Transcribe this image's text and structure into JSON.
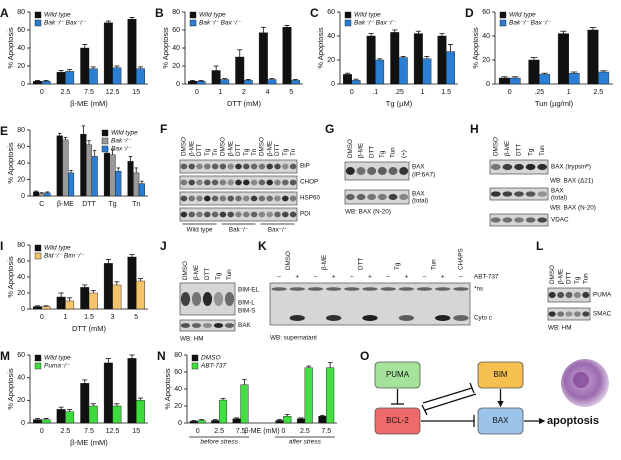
{
  "chart_data": [
    {
      "type": "bar",
      "panel": "A",
      "y_label": "% Apoptosis",
      "x_label": "β-ME (mM)",
      "categories": [
        "0",
        "2.5",
        "7.5",
        "12.5",
        "15"
      ],
      "ylim": [
        0,
        80
      ],
      "yticks": [
        0,
        20,
        40,
        60,
        80
      ],
      "legend": "upper-left",
      "series": [
        {
          "name": "Wild type",
          "color": "#111111",
          "values": [
            3,
            13,
            40,
            68,
            72
          ],
          "errors": [
            1,
            2,
            4,
            2,
            2
          ]
        },
        {
          "name": "Bak⁻/⁻ Bax⁻/⁻",
          "color": "#2a7fd4",
          "values": [
            3,
            14,
            17,
            18,
            17
          ],
          "errors": [
            1,
            2,
            2,
            2,
            2
          ]
        }
      ]
    },
    {
      "type": "bar",
      "panel": "B",
      "y_label": "% Apoptosis",
      "x_label": "DTT (mM)",
      "categories": [
        "0",
        "1",
        "2",
        "4",
        "5"
      ],
      "ylim": [
        0,
        80
      ],
      "yticks": [
        0,
        20,
        40,
        60,
        80
      ],
      "legend": "upper-left",
      "series": [
        {
          "name": "Wild type",
          "color": "#111111",
          "values": [
            3,
            15,
            30,
            57,
            63
          ],
          "errors": [
            1,
            5,
            8,
            6,
            2
          ]
        },
        {
          "name": "Bak⁻/⁻ Bax⁻/⁻",
          "color": "#2a7fd4",
          "values": [
            3,
            5,
            4,
            5,
            4
          ],
          "errors": [
            1,
            1,
            1,
            1,
            1
          ]
        }
      ]
    },
    {
      "type": "bar",
      "panel": "C",
      "y_label": "% Apoptosis",
      "x_label": "Tg (µM)",
      "categories": [
        "0",
        ".1",
        ".25",
        "1",
        "1.5"
      ],
      "ylim": [
        0,
        60
      ],
      "yticks": [
        0,
        20,
        40,
        60
      ],
      "legend": "upper-left",
      "series": [
        {
          "name": "Wild type",
          "color": "#111111",
          "values": [
            8,
            40,
            43,
            42,
            40
          ],
          "errors": [
            1,
            2,
            2,
            2,
            2
          ]
        },
        {
          "name": "Bak⁻/⁻ Bax⁻/⁻",
          "color": "#2a7fd4",
          "values": [
            3,
            20,
            22,
            21,
            27
          ],
          "errors": [
            1,
            1,
            1,
            2,
            6
          ]
        }
      ]
    },
    {
      "type": "bar",
      "panel": "D",
      "y_label": "% Apoptosis",
      "x_label": "Tun (µg/ml)",
      "categories": [
        "0",
        ".25",
        "1",
        "2.5"
      ],
      "ylim": [
        0,
        60
      ],
      "yticks": [
        0,
        20,
        40,
        60
      ],
      "legend": "upper-left",
      "series": [
        {
          "name": "Wild type",
          "color": "#111111",
          "values": [
            5,
            20,
            42,
            45
          ],
          "errors": [
            1,
            2,
            2,
            2
          ]
        },
        {
          "name": "Bak⁻/⁻ Bax⁻/⁻",
          "color": "#2a7fd4",
          "values": [
            5,
            8,
            9,
            10
          ],
          "errors": [
            1,
            1,
            1,
            1
          ]
        }
      ]
    },
    {
      "type": "bar",
      "panel": "E",
      "y_label": "% Apoptosis",
      "categories": [
        "C",
        "β-ME",
        "DTT",
        "Tg",
        "Tn"
      ],
      "ylim": [
        0,
        80
      ],
      "yticks": [
        0,
        20,
        40,
        60,
        80
      ],
      "legend": "upper-right",
      "series": [
        {
          "name": "Wild type",
          "color": "#111111",
          "values": [
            5,
            73,
            75,
            52,
            42
          ],
          "errors": [
            1,
            3,
            10,
            5,
            6
          ]
        },
        {
          "name": "Bak⁻/⁻",
          "color": "#999999",
          "values": [
            3,
            68,
            62,
            50,
            28
          ],
          "errors": [
            1,
            3,
            5,
            6,
            6
          ]
        },
        {
          "name": "Bax⁻/⁻",
          "color": "#2a7fd4",
          "values": [
            4,
            28,
            48,
            30,
            15
          ],
          "errors": [
            1,
            3,
            7,
            4,
            3
          ]
        }
      ]
    },
    {
      "type": "bar",
      "panel": "I",
      "y_label": "% Apoptosis",
      "x_label": "DTT (mM)",
      "categories": [
        "0",
        "1",
        "1.5",
        "3",
        "5"
      ],
      "ylim": [
        0,
        80
      ],
      "yticks": [
        0,
        20,
        40,
        60,
        80
      ],
      "legend": "upper-left",
      "series": [
        {
          "name": "Wild type",
          "color": "#111111",
          "values": [
            3,
            15,
            27,
            57,
            65
          ],
          "errors": [
            1,
            5,
            3,
            5,
            3
          ]
        },
        {
          "name": "Bid⁻/⁻ Bim⁻/⁻",
          "color": "#f4c36a",
          "values": [
            3,
            10,
            20,
            30,
            35
          ],
          "errors": [
            1,
            4,
            3,
            4,
            3
          ]
        }
      ]
    },
    {
      "type": "bar",
      "panel": "M",
      "y_label": "% Apoptosis",
      "x_label": "β-ME (mM)",
      "categories": [
        "0",
        "2.5",
        "7.5",
        "12.5",
        "15"
      ],
      "ylim": [
        0,
        60
      ],
      "yticks": [
        0,
        20,
        40,
        60
      ],
      "legend": "upper-left",
      "series": [
        {
          "name": "Wild type",
          "color": "#111111",
          "values": [
            3,
            12,
            35,
            53,
            57
          ],
          "errors": [
            1,
            2,
            3,
            4,
            3
          ]
        },
        {
          "name": "Puma⁻/⁻",
          "color": "#3ddc3d",
          "values": [
            3,
            10,
            15,
            15,
            20
          ],
          "errors": [
            1,
            2,
            2,
            2,
            2
          ]
        }
      ]
    },
    {
      "type": "bar",
      "panel": "N",
      "y_label": "% Apoptosis",
      "x_label": "β-ME (mM)",
      "group_labels": [
        "before stress",
        "after stress"
      ],
      "categories": [
        "0",
        "2.5",
        "7.5",
        "0",
        "2.5",
        "7.5"
      ],
      "ylim": [
        0,
        80
      ],
      "yticks": [
        0,
        20,
        40,
        60,
        80
      ],
      "legend": "upper-left",
      "series": [
        {
          "name": "DMSO",
          "color": "#111111",
          "values": [
            2,
            3,
            5,
            3,
            5,
            8
          ],
          "errors": [
            1,
            1,
            1,
            1,
            1,
            1
          ]
        },
        {
          "name": "ABT-737",
          "color": "#44dd44",
          "values": [
            3,
            27,
            45,
            8,
            65,
            65
          ],
          "errors": [
            1,
            2,
            6,
            2,
            2,
            6
          ]
        }
      ]
    }
  ],
  "blots": {
    "F": {
      "panel": "F",
      "lanes": [
        "DMSO",
        "β-ME",
        "DTT",
        "Tg",
        "Tn",
        "DMSO",
        "β-ME",
        "DTT",
        "Tg",
        "Tn",
        "DMSO",
        "β-ME",
        "DTT",
        "Tg",
        "Tn"
      ],
      "groups": [
        "Wild type",
        "Bak⁻/⁻",
        "Bax⁻/⁻"
      ],
      "rows": [
        {
          "labels": [
            "BiP"
          ]
        },
        {
          "labels": [
            "CHOP"
          ]
        },
        {
          "labels": [
            "HSP60"
          ]
        },
        {
          "labels": [
            "PDI"
          ]
        }
      ]
    },
    "G": {
      "panel": "G",
      "lanes": [
        "DMSO",
        "β-ME",
        "DTT",
        "Tg",
        "Tun",
        "(+)"
      ],
      "rows": [
        {
          "labels": [
            "BAX",
            "(IP:6A7)"
          ]
        },
        {
          "labels": [
            "BAX",
            "(total)"
          ],
          "footer": "WB: BAX (N-20)"
        }
      ]
    },
    "H": {
      "panel": "H",
      "lanes": [
        "DMSO",
        "β-ME",
        "DTT",
        "Tg",
        "Tun"
      ],
      "rows": [
        {
          "labels": [
            "BAX (trypsinᴿ)"
          ],
          "footer": "WB: BAX (Δ21)"
        },
        {
          "labels": [
            "BAX",
            "(total)"
          ],
          "footer": "WB: BAX (N-20)"
        },
        {
          "labels": [
            "VDAC"
          ]
        }
      ]
    },
    "J": {
      "panel": "J",
      "lanes": [
        "DMSO",
        "β-ME",
        "DTT",
        "Tg",
        "Tun"
      ],
      "rows": [
        {
          "labels": [
            "BIM-EL",
            "BIM-L",
            "BIM-S"
          ]
        },
        {
          "labels": [
            "BAK"
          ],
          "footer": "WB: HM"
        }
      ]
    },
    "K": {
      "panel": "K",
      "lanes": [
        "DMSO",
        "β-ME",
        "DTT",
        "Tg",
        "Tun",
        "CHAPS"
      ],
      "signs": [
        "–",
        "+",
        "–",
        "+",
        "–",
        "+",
        "–",
        "+",
        "–",
        "+",
        "–"
      ],
      "treatment": "ABT-737",
      "rows": [
        {
          "labels": [
            "*ns",
            "Cyto c"
          ],
          "footer": "WB: supernatant"
        }
      ]
    },
    "L": {
      "panel": "L",
      "lanes": [
        "DMSO",
        "β-ME",
        "DTT",
        "Tg",
        "Tun"
      ],
      "rows": [
        {
          "labels": [
            "PUMA"
          ]
        },
        {
          "labels": [
            "SMAC"
          ],
          "footer": "WB: HM"
        }
      ]
    }
  },
  "diagram": {
    "panel": "O",
    "nodes": [
      {
        "label": "PUMA",
        "color": "#a6e39a"
      },
      {
        "label": "BIM",
        "color": "#f5c04f"
      },
      {
        "label": "BCL-2",
        "color": "#ef6b6b"
      },
      {
        "label": "BAX",
        "color": "#9cc3ea"
      }
    ],
    "outcome": "apoptosis"
  }
}
